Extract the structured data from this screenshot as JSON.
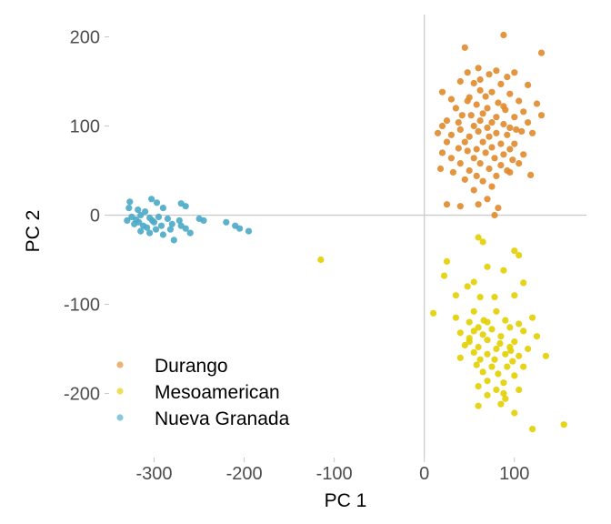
{
  "chart_data": {
    "type": "scatter",
    "xlabel": "PC 1",
    "ylabel": "PC 2",
    "xlim": [
      -350,
      180
    ],
    "ylim": [
      -272,
      225
    ],
    "x_ticks": [
      -300,
      -200,
      -100,
      0,
      100
    ],
    "y_ticks": [
      -200,
      -100,
      0,
      100,
      200
    ],
    "x_tick_labels": [
      "-300",
      "-200",
      "-100",
      "0",
      "100"
    ],
    "y_tick_labels": [
      "-200",
      "-100",
      "0",
      "100",
      "200"
    ],
    "zero_lines": true,
    "grid": false,
    "legend_position": "bottom-left",
    "series": [
      {
        "name": "Durango",
        "color": "#E08A2A",
        "points": [
          [
            45,
            188
          ],
          [
            88,
            202
          ],
          [
            130,
            182
          ],
          [
            60,
            165
          ],
          [
            80,
            162
          ],
          [
            100,
            160
          ],
          [
            72,
            158
          ],
          [
            92,
            155
          ],
          [
            40,
            150
          ],
          [
            55,
            148
          ],
          [
            85,
            147
          ],
          [
            115,
            146
          ],
          [
            20,
            138
          ],
          [
            62,
            140
          ],
          [
            75,
            138
          ],
          [
            95,
            136
          ],
          [
            50,
            132
          ],
          [
            68,
            133
          ],
          [
            30,
            130
          ],
          [
            48,
            128
          ],
          [
            105,
            128
          ],
          [
            82,
            126
          ],
          [
            58,
            124
          ],
          [
            125,
            125
          ],
          [
            35,
            120
          ],
          [
            70,
            120
          ],
          [
            90,
            118
          ],
          [
            110,
            116
          ],
          [
            65,
            114
          ],
          [
            42,
            112
          ],
          [
            52,
            112
          ],
          [
            80,
            110
          ],
          [
            100,
            110
          ],
          [
            130,
            112
          ],
          [
            25,
            106
          ],
          [
            38,
            104
          ],
          [
            62,
            106
          ],
          [
            75,
            104
          ],
          [
            88,
            102
          ],
          [
            115,
            104
          ],
          [
            20,
            100
          ],
          [
            55,
            100
          ],
          [
            70,
            98
          ],
          [
            95,
            98
          ],
          [
            40,
            96
          ],
          [
            60,
            94
          ],
          [
            80,
            92
          ],
          [
            108,
            94
          ],
          [
            15,
            92
          ],
          [
            30,
            90
          ],
          [
            50,
            88
          ],
          [
            72,
            88
          ],
          [
            92,
            90
          ],
          [
            120,
            92
          ],
          [
            25,
            82
          ],
          [
            45,
            82
          ],
          [
            65,
            82
          ],
          [
            85,
            80
          ],
          [
            100,
            80
          ],
          [
            38,
            75
          ],
          [
            58,
            74
          ],
          [
            75,
            76
          ],
          [
            95,
            74
          ],
          [
            20,
            70
          ],
          [
            48,
            72
          ],
          [
            68,
            70
          ],
          [
            88,
            68
          ],
          [
            110,
            68
          ],
          [
            30,
            64
          ],
          [
            55,
            64
          ],
          [
            78,
            64
          ],
          [
            98,
            62
          ],
          [
            40,
            58
          ],
          [
            62,
            58
          ],
          [
            85,
            56
          ],
          [
            18,
            52
          ],
          [
            50,
            50
          ],
          [
            72,
            52
          ],
          [
            92,
            50
          ],
          [
            32,
            48
          ],
          [
            58,
            44
          ],
          [
            80,
            44
          ],
          [
            45,
            40
          ],
          [
            65,
            38
          ],
          [
            118,
            45
          ],
          [
            75,
            32
          ],
          [
            55,
            28
          ],
          [
            70,
            18
          ],
          [
            60,
            12
          ],
          [
            82,
            8
          ],
          [
            25,
            12
          ],
          [
            40,
            10
          ],
          [
            78,
            0
          ],
          [
            95,
            48
          ],
          [
            105,
            58
          ],
          [
            88,
            122
          ],
          [
            62,
            152
          ],
          [
            48,
            160
          ],
          [
            102,
            96
          ]
        ]
      },
      {
        "name": "Mesoamerican",
        "color": "#E3CF00",
        "points": [
          [
            -115,
            -50
          ],
          [
            60,
            -25
          ],
          [
            65,
            -30
          ],
          [
            100,
            -40
          ],
          [
            105,
            -45
          ],
          [
            25,
            -52
          ],
          [
            70,
            -58
          ],
          [
            88,
            -62
          ],
          [
            22,
            -68
          ],
          [
            48,
            -80
          ],
          [
            55,
            -75
          ],
          [
            110,
            -76
          ],
          [
            35,
            -90
          ],
          [
            62,
            -92
          ],
          [
            78,
            -92
          ],
          [
            100,
            -90
          ],
          [
            10,
            -110
          ],
          [
            55,
            -108
          ],
          [
            80,
            -108
          ],
          [
            120,
            -115
          ],
          [
            35,
            -115
          ],
          [
            50,
            -120
          ],
          [
            70,
            -120
          ],
          [
            90,
            -118
          ],
          [
            105,
            -122
          ],
          [
            60,
            -126
          ],
          [
            75,
            -128
          ],
          [
            95,
            -126
          ],
          [
            110,
            -130
          ],
          [
            40,
            -132
          ],
          [
            65,
            -134
          ],
          [
            85,
            -136
          ],
          [
            125,
            -136
          ],
          [
            50,
            -138
          ],
          [
            70,
            -140
          ],
          [
            100,
            -142
          ],
          [
            45,
            -146
          ],
          [
            60,
            -148
          ],
          [
            80,
            -150
          ],
          [
            95,
            -148
          ],
          [
            115,
            -150
          ],
          [
            55,
            -154
          ],
          [
            70,
            -156
          ],
          [
            90,
            -156
          ],
          [
            105,
            -158
          ],
          [
            40,
            -160
          ],
          [
            62,
            -162
          ],
          [
            78,
            -162
          ],
          [
            98,
            -164
          ],
          [
            135,
            -158
          ],
          [
            58,
            -168
          ],
          [
            75,
            -170
          ],
          [
            92,
            -170
          ],
          [
            110,
            -170
          ],
          [
            65,
            -176
          ],
          [
            82,
            -178
          ],
          [
            100,
            -180
          ],
          [
            70,
            -186
          ],
          [
            88,
            -188
          ],
          [
            60,
            -192
          ],
          [
            80,
            -196
          ],
          [
            105,
            -196
          ],
          [
            70,
            -202
          ],
          [
            90,
            -206
          ],
          [
            60,
            -214
          ],
          [
            85,
            -212
          ],
          [
            100,
            -222
          ],
          [
            88,
            -200
          ],
          [
            120,
            -240
          ],
          [
            155,
            -235
          ],
          [
            50,
            -142
          ],
          [
            66,
            -118
          ],
          [
            55,
            -130
          ],
          [
            84,
            -144
          ],
          [
            96,
            -152
          ]
        ]
      },
      {
        "name": "Nueva Granada",
        "color": "#4AAAC8",
        "points": [
          [
            -327,
            15
          ],
          [
            -303,
            18
          ],
          [
            -297,
            14
          ],
          [
            -270,
            13
          ],
          [
            -265,
            10
          ],
          [
            -328,
            8
          ],
          [
            -318,
            6
          ],
          [
            -310,
            4
          ],
          [
            -290,
            8
          ],
          [
            -315,
            0
          ],
          [
            -325,
            -2
          ],
          [
            -320,
            -5
          ],
          [
            -305,
            -3
          ],
          [
            -295,
            -2
          ],
          [
            -285,
            -4
          ],
          [
            -322,
            -10
          ],
          [
            -312,
            -12
          ],
          [
            -300,
            -8
          ],
          [
            -280,
            -10
          ],
          [
            -270,
            -12
          ],
          [
            -265,
            -15
          ],
          [
            -315,
            -18
          ],
          [
            -305,
            -20
          ],
          [
            -290,
            -22
          ],
          [
            -278,
            -28
          ],
          [
            -260,
            -20
          ],
          [
            -250,
            -4
          ],
          [
            -245,
            -6
          ],
          [
            -220,
            -8
          ],
          [
            -210,
            -12
          ],
          [
            -205,
            -15
          ],
          [
            -195,
            -18
          ],
          [
            -330,
            -6
          ],
          [
            -308,
            -14
          ],
          [
            -298,
            -16
          ],
          [
            -282,
            -16
          ],
          [
            -272,
            -6
          ],
          [
            -292,
            -12
          ],
          [
            -317,
            -8
          ],
          [
            -302,
            -6
          ]
        ]
      }
    ]
  }
}
